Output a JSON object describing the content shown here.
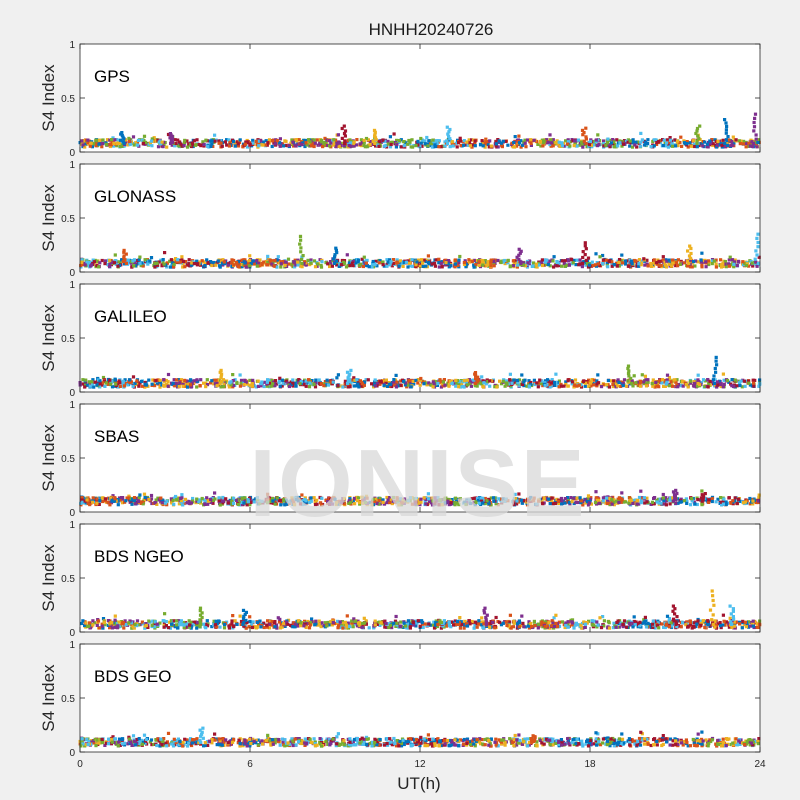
{
  "watermark": "IONISE",
  "chart_data": {
    "type": "scatter",
    "title": "HNHH20240726",
    "xlabel": "UT(h)",
    "ylabel": "S4 Index",
    "xlim": [
      0,
      24
    ],
    "ylim": [
      0,
      1
    ],
    "xticks": [
      0,
      6,
      12,
      18,
      24
    ],
    "yticks": [
      0,
      0.5,
      1
    ],
    "xtick_labels": [
      "0",
      "6",
      "12",
      "18",
      "24"
    ],
    "ytick_labels": [
      "0",
      "0.5",
      "1"
    ],
    "grid": false,
    "series_colors": [
      "#0072BD",
      "#D95319",
      "#EDB120",
      "#7E2F8E",
      "#77AC30",
      "#4DBEEE",
      "#A2142F"
    ],
    "panels": [
      {
        "label": "GPS",
        "baseline": 0.08,
        "spikes": [
          [
            1.5,
            0.18
          ],
          [
            3.2,
            0.17
          ],
          [
            9.3,
            0.24
          ],
          [
            10.4,
            0.2
          ],
          [
            13.0,
            0.23
          ],
          [
            17.8,
            0.22
          ],
          [
            21.8,
            0.24
          ],
          [
            22.8,
            0.3
          ],
          [
            23.8,
            0.35
          ]
        ]
      },
      {
        "label": "GLONASS",
        "baseline": 0.08,
        "spikes": [
          [
            1.6,
            0.2
          ],
          [
            7.8,
            0.33
          ],
          [
            9.0,
            0.22
          ],
          [
            15.5,
            0.21
          ],
          [
            17.8,
            0.27
          ],
          [
            21.5,
            0.24
          ],
          [
            23.9,
            0.35
          ]
        ]
      },
      {
        "label": "GALILEO",
        "baseline": 0.08,
        "spikes": [
          [
            5.0,
            0.2
          ],
          [
            9.5,
            0.2
          ],
          [
            14.0,
            0.18
          ],
          [
            19.4,
            0.24
          ],
          [
            22.4,
            0.32
          ]
        ]
      },
      {
        "label": "SBAS",
        "baseline": 0.1,
        "spikes": [
          [
            21.0,
            0.2
          ],
          [
            22.0,
            0.17
          ]
        ]
      },
      {
        "label": "BDS NGEO",
        "baseline": 0.07,
        "spikes": [
          [
            4.3,
            0.22
          ],
          [
            5.8,
            0.2
          ],
          [
            14.3,
            0.22
          ],
          [
            21.0,
            0.24
          ],
          [
            22.3,
            0.38
          ],
          [
            23.0,
            0.24
          ]
        ]
      },
      {
        "label": "BDS GEO",
        "baseline": 0.09,
        "spikes": [
          [
            4.3,
            0.22
          ],
          [
            16.0,
            0.15
          ]
        ]
      }
    ]
  }
}
